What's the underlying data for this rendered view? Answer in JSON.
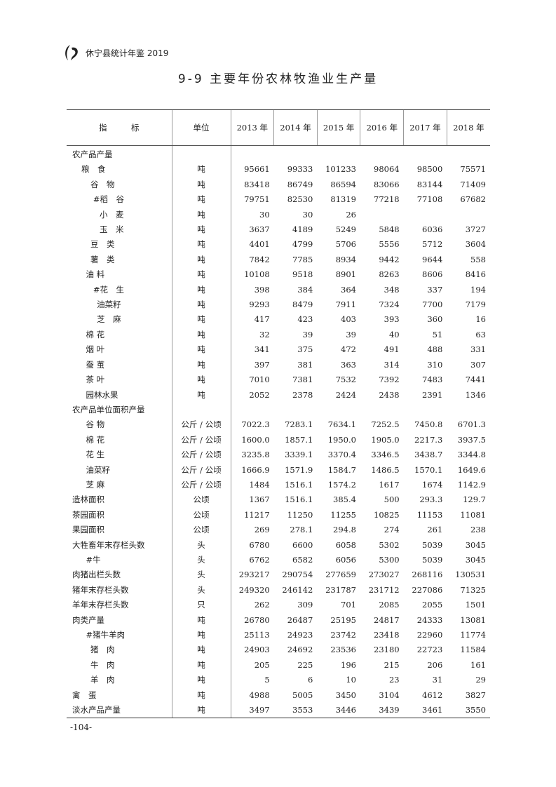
{
  "header": {
    "book_title": "休宁县统计年鉴 2019"
  },
  "title": "9-9 主要年份农林牧渔业生产量",
  "table": {
    "columns": [
      "指　　　标",
      "单位",
      "2013 年",
      "2014 年",
      "2015 年",
      "2016 年",
      "2017 年",
      "2018 年"
    ],
    "rows": [
      {
        "label": "农产品产量",
        "level": 0,
        "unit": "",
        "values": [
          "",
          "",
          "",
          "",
          "",
          ""
        ]
      },
      {
        "label": "粮　食",
        "level": 1,
        "unit": "吨",
        "values": [
          "95661",
          "99333",
          "101233",
          "98064",
          "98500",
          "75571"
        ]
      },
      {
        "label": "谷　物",
        "level": 2,
        "unit": "吨",
        "values": [
          "83418",
          "86749",
          "86594",
          "83066",
          "83144",
          "71409"
        ]
      },
      {
        "label": "#稻　谷",
        "level": 2.3,
        "unit": "吨",
        "values": [
          "79751",
          "82530",
          "81319",
          "77218",
          "77108",
          "67682"
        ]
      },
      {
        "label": "小　麦",
        "level": 3,
        "unit": "吨",
        "values": [
          "30",
          "30",
          "26",
          "",
          "",
          ""
        ]
      },
      {
        "label": "玉　米",
        "level": 3,
        "unit": "吨",
        "values": [
          "3637",
          "4189",
          "5249",
          "5848",
          "6036",
          "3727"
        ]
      },
      {
        "label": "豆　类",
        "level": 2,
        "unit": "吨",
        "values": [
          "4401",
          "4799",
          "5706",
          "5556",
          "5712",
          "3604"
        ]
      },
      {
        "label": "薯　类",
        "level": 2,
        "unit": "吨",
        "values": [
          "7842",
          "7785",
          "8934",
          "9442",
          "9644",
          "558"
        ]
      },
      {
        "label": "油 料",
        "level": 1.5,
        "unit": "吨",
        "values": [
          "10108",
          "9518",
          "8901",
          "8263",
          "8606",
          "8416"
        ]
      },
      {
        "label": "#花　生",
        "level": 2.3,
        "unit": "吨",
        "values": [
          "398",
          "384",
          "364",
          "348",
          "337",
          "194"
        ]
      },
      {
        "label": "油菜籽",
        "level": 2.7,
        "unit": "吨",
        "values": [
          "9293",
          "8479",
          "7911",
          "7324",
          "7700",
          "7179"
        ]
      },
      {
        "label": "芝　麻",
        "level": 2.7,
        "unit": "吨",
        "values": [
          "417",
          "423",
          "403",
          "393",
          "360",
          "16"
        ]
      },
      {
        "label": "棉 花",
        "level": 1.5,
        "unit": "吨",
        "values": [
          "32",
          "39",
          "39",
          "40",
          "51",
          "63"
        ]
      },
      {
        "label": "烟 叶",
        "level": 1.5,
        "unit": "吨",
        "values": [
          "341",
          "375",
          "472",
          "491",
          "488",
          "331"
        ]
      },
      {
        "label": "蚕 茧",
        "level": 1.5,
        "unit": "吨",
        "values": [
          "397",
          "381",
          "363",
          "314",
          "310",
          "307"
        ]
      },
      {
        "label": "茶 叶",
        "level": 1.5,
        "unit": "吨",
        "values": [
          "7010",
          "7381",
          "7532",
          "7392",
          "7483",
          "7441"
        ]
      },
      {
        "label": "园林水果",
        "level": 1.5,
        "unit": "吨",
        "values": [
          "2052",
          "2378",
          "2424",
          "2438",
          "2391",
          "1346"
        ]
      },
      {
        "label": "农产品单位面积产量",
        "level": 0,
        "unit": "",
        "values": [
          "",
          "",
          "",
          "",
          "",
          ""
        ]
      },
      {
        "label": "谷 物",
        "level": 1.5,
        "unit": "公斤 / 公顷",
        "values": [
          "7022.3",
          "7283.1",
          "7634.1",
          "7252.5",
          "7450.8",
          "6701.3"
        ]
      },
      {
        "label": "棉 花",
        "level": 1.5,
        "unit": "公斤 / 公顷",
        "values": [
          "1600.0",
          "1857.1",
          "1950.0",
          "1905.0",
          "2217.3",
          "3937.5"
        ]
      },
      {
        "label": "花 生",
        "level": 1.5,
        "unit": "公斤 / 公顷",
        "values": [
          "3235.8",
          "3339.1",
          "3370.4",
          "3346.5",
          "3438.7",
          "3344.8"
        ]
      },
      {
        "label": "油菜籽",
        "level": 1.5,
        "unit": "公斤 / 公顷",
        "values": [
          "1666.9",
          "1571.9",
          "1584.7",
          "1486.5",
          "1570.1",
          "1649.6"
        ]
      },
      {
        "label": "芝 麻",
        "level": 1.5,
        "unit": "公斤 / 公顷",
        "values": [
          "1484",
          "1516.1",
          "1574.2",
          "1617",
          "1674",
          "1142.9"
        ]
      },
      {
        "label": "造林面积",
        "level": 0,
        "unit": "公顷",
        "values": [
          "1367",
          "1516.1",
          "385.4",
          "500",
          "293.3",
          "129.7"
        ]
      },
      {
        "label": "茶园面积",
        "level": 0,
        "unit": "公顷",
        "values": [
          "11217",
          "11250",
          "11255",
          "10825",
          "11153",
          "11081"
        ]
      },
      {
        "label": "果园面积",
        "level": 0,
        "unit": "公顷",
        "values": [
          "269",
          "278.1",
          "294.8",
          "274",
          "261",
          "238"
        ]
      },
      {
        "label": "大牲畜年末存栏头数",
        "level": 0,
        "unit": "头",
        "values": [
          "6780",
          "6600",
          "6058",
          "5302",
          "5039",
          "3045"
        ]
      },
      {
        "label": "#牛",
        "level": 1.5,
        "unit": "头",
        "values": [
          "6762",
          "6582",
          "6056",
          "5300",
          "5039",
          "3045"
        ]
      },
      {
        "label": "肉猪出栏头数",
        "level": 0,
        "unit": "头",
        "values": [
          "293217",
          "290754",
          "277659",
          "273027",
          "268116",
          "130531"
        ]
      },
      {
        "label": "猪年末存栏头数",
        "level": 0,
        "unit": "头",
        "values": [
          "249320",
          "246142",
          "231787",
          "231712",
          "227086",
          "71325"
        ]
      },
      {
        "label": "羊年末存栏头数",
        "level": 0,
        "unit": "只",
        "values": [
          "262",
          "309",
          "701",
          "2085",
          "2055",
          "1501"
        ]
      },
      {
        "label": "肉类产量",
        "level": 0,
        "unit": "吨",
        "values": [
          "26780",
          "26487",
          "25195",
          "24817",
          "24333",
          "13081"
        ]
      },
      {
        "label": "#猪牛羊肉",
        "level": 1.5,
        "unit": "吨",
        "values": [
          "25113",
          "24923",
          "23742",
          "23418",
          "22960",
          "11774"
        ]
      },
      {
        "label": "猪　肉",
        "level": 2,
        "unit": "吨",
        "values": [
          "24903",
          "24692",
          "23536",
          "23180",
          "22723",
          "11584"
        ]
      },
      {
        "label": "牛　肉",
        "level": 2,
        "unit": "吨",
        "values": [
          "205",
          "225",
          "196",
          "215",
          "206",
          "161"
        ]
      },
      {
        "label": "羊　肉",
        "level": 2,
        "unit": "吨",
        "values": [
          "5",
          "6",
          "10",
          "23",
          "31",
          "29"
        ]
      },
      {
        "label": "禽　蛋",
        "level": 0,
        "unit": "吨",
        "values": [
          "4988",
          "5005",
          "3450",
          "3104",
          "4612",
          "3827"
        ]
      },
      {
        "label": "淡水产品产量",
        "level": 0,
        "unit": "吨",
        "values": [
          "3497",
          "3553",
          "3446",
          "3439",
          "3461",
          "3550"
        ]
      }
    ]
  },
  "footer": {
    "page_number": "-104-"
  }
}
